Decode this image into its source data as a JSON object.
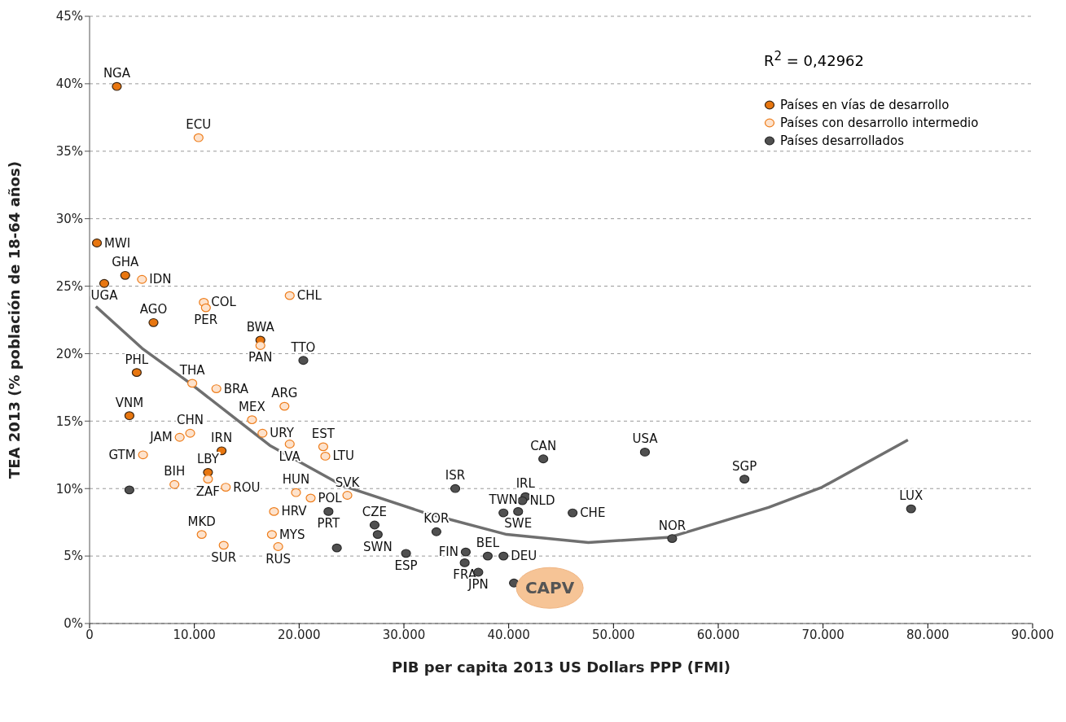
{
  "chart_data": {
    "type": "scatter",
    "xlabel": "PIB per capita 2013 US Dollars PPP (FMI)",
    "ylabel": "TEA 2013 (% población de 18-64 años)",
    "xlim": [
      0,
      90000
    ],
    "xticks": [
      0,
      {
        "value": 10000,
        "label": "10.000"
      },
      {
        "value": 20000,
        "label": "20.000"
      },
      {
        "value": 30000,
        "label": "30.000"
      },
      {
        "value": 40000,
        "label": "40.000"
      },
      {
        "value": 50000,
        "label": "50.000"
      },
      {
        "value": 60000,
        "label": "60.000"
      },
      {
        "value": 70000,
        "label": "70.000"
      },
      {
        "value": 80000,
        "label": "80.000"
      },
      {
        "value": 90000,
        "label": "90.000"
      }
    ],
    "ylim": [
      0,
      45
    ],
    "yticks": [
      {
        "value": 0,
        "label": "0%"
      },
      {
        "value": 5,
        "label": "5%"
      },
      {
        "value": 10,
        "label": "10%"
      },
      {
        "value": 15,
        "label": "15%"
      },
      {
        "value": 20,
        "label": "20%"
      },
      {
        "value": 25,
        "label": "25%"
      },
      {
        "value": 30,
        "label": "30%"
      },
      {
        "value": 35,
        "label": "35%"
      },
      {
        "value": 40,
        "label": "40%"
      },
      {
        "value": 45,
        "label": "45%"
      }
    ],
    "grid": "y",
    "legend": "top right",
    "marker": "circle",
    "annotations": [
      "R$^{2}$  = 0,42962",
      {
        "text": "CAPV",
        "x": 40500,
        "y": 3.0
      }
    ],
    "series": [
      {
        "name": "Países en vías de desarrollo",
        "color": "#e8760f",
        "x": [
          2600,
          700,
          3400,
          1400,
          6100,
          16300,
          4500,
          3800,
          12600,
          11300
        ],
        "values": [
          39.8,
          28.2,
          25.8,
          25.2,
          22.3,
          21.0,
          18.6,
          15.4,
          12.8,
          11.2
        ],
        "value_labels": [
          "NGA",
          "MWI",
          "GHA",
          "UGA",
          "AGO",
          "BWA",
          "PHL",
          "VNM",
          "IRN",
          "LBY"
        ]
      },
      {
        "name": "Países con desarrollo intermedio",
        "color": "#fde2cc",
        "x": [
          10400,
          5000,
          10900,
          11100,
          19100,
          16300,
          9800,
          12100,
          18600,
          15500,
          9600,
          8600,
          16500,
          19100,
          22300,
          22500,
          5100,
          8100,
          11300,
          13000,
          19700,
          21100,
          24600,
          17600,
          17400,
          18000,
          10700,
          12800
        ],
        "values": [
          36.0,
          25.5,
          23.8,
          23.4,
          24.3,
          20.6,
          17.8,
          17.4,
          16.1,
          15.1,
          14.1,
          13.8,
          14.1,
          13.3,
          13.1,
          12.4,
          12.5,
          10.3,
          10.7,
          10.1,
          9.7,
          9.3,
          9.5,
          8.3,
          6.6,
          5.7,
          6.6,
          5.8
        ],
        "value_labels": [
          "ECU",
          "IDN",
          "COL",
          "PER",
          "CHL",
          "PAN",
          "THA",
          "BRA",
          "ARG",
          "MEX",
          "CHN",
          "JAM",
          "URY",
          "LVA",
          "EST",
          "LTU",
          "GTM",
          "BIH",
          "ZAF",
          "ROU",
          "HUN",
          "POL",
          "SVK",
          "HRV",
          "MYS",
          "RUS",
          "MKD",
          "SUR"
        ]
      },
      {
        "name": "Países desarrollados",
        "color": "#505050",
        "x": [
          3800,
          20400,
          22800,
          23600,
          27200,
          27500,
          30200,
          33100,
          34900,
          43300,
          53000,
          62500,
          41600,
          41300,
          39500,
          40900,
          46100,
          55600,
          35900,
          35800,
          38000,
          39500,
          37100,
          40500,
          78400
        ],
        "values": [
          9.9,
          19.5,
          8.3,
          5.6,
          7.3,
          6.6,
          5.2,
          6.8,
          10.0,
          12.2,
          12.7,
          10.7,
          9.4,
          9.1,
          8.2,
          8.3,
          8.2,
          6.3,
          5.3,
          4.5,
          5.0,
          5.0,
          3.8,
          3.0,
          8.5
        ],
        "value_labels": [
          null,
          "TTO",
          "PRT",
          null,
          "CZE",
          "SWN",
          "ESP",
          "KOR",
          "ISR",
          "CAN",
          "USA",
          "SGP",
          "IRL",
          "NLD",
          "TWN",
          "SWE",
          "CHE",
          "NOR",
          "FIN",
          "FRA",
          "BEL",
          "DEU",
          "JPN",
          null,
          "LUX"
        ]
      },
      {
        "type": "line",
        "marker": "none",
        "color": "#6f6f6f",
        "x": [
          600,
          5000,
          9600,
          17200,
          24200,
          32000,
          39800,
          47600,
          55400,
          64800,
          69900,
          78100
        ],
        "values": [
          23.5,
          20.4,
          17.8,
          13.2,
          10.2,
          8.2,
          6.6,
          6.0,
          6.4,
          8.6,
          10.1,
          13.6
        ]
      }
    ]
  }
}
